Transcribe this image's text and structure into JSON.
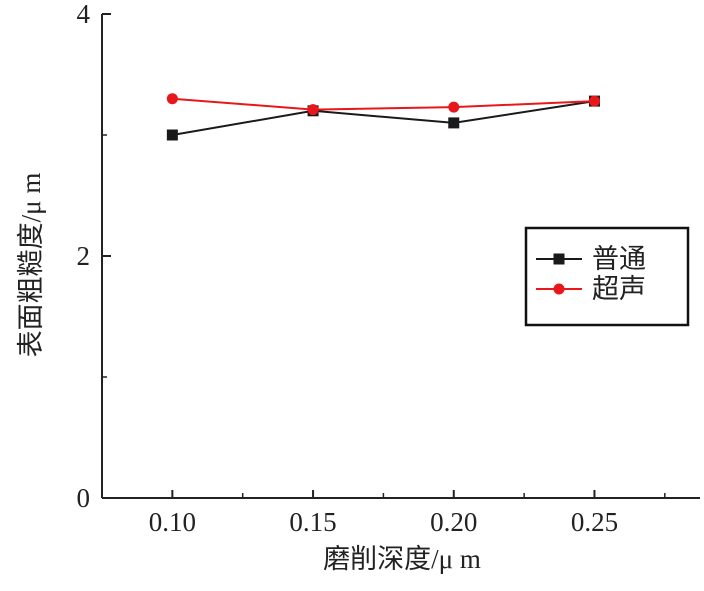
{
  "chart_data": {
    "type": "line",
    "title": "",
    "xlabel": "磨削深度/μ m",
    "ylabel": "表面粗糙度/μ m",
    "x": [
      0.1,
      0.15,
      0.2,
      0.25
    ],
    "x_tick_labels": [
      "0.10",
      "0.15",
      "0.20",
      "0.25"
    ],
    "y_tick_labels": [
      "0",
      "2",
      "4"
    ],
    "ylim": [
      0,
      4
    ],
    "grid": false,
    "legend_position": "right",
    "series": [
      {
        "name": "普通",
        "values": [
          3.0,
          3.2,
          3.1,
          3.28
        ],
        "color": "#1a1a1a",
        "marker": "square"
      },
      {
        "name": "超声",
        "values": [
          3.3,
          3.21,
          3.23,
          3.28
        ],
        "color": "#e8171b",
        "marker": "circle"
      }
    ]
  }
}
